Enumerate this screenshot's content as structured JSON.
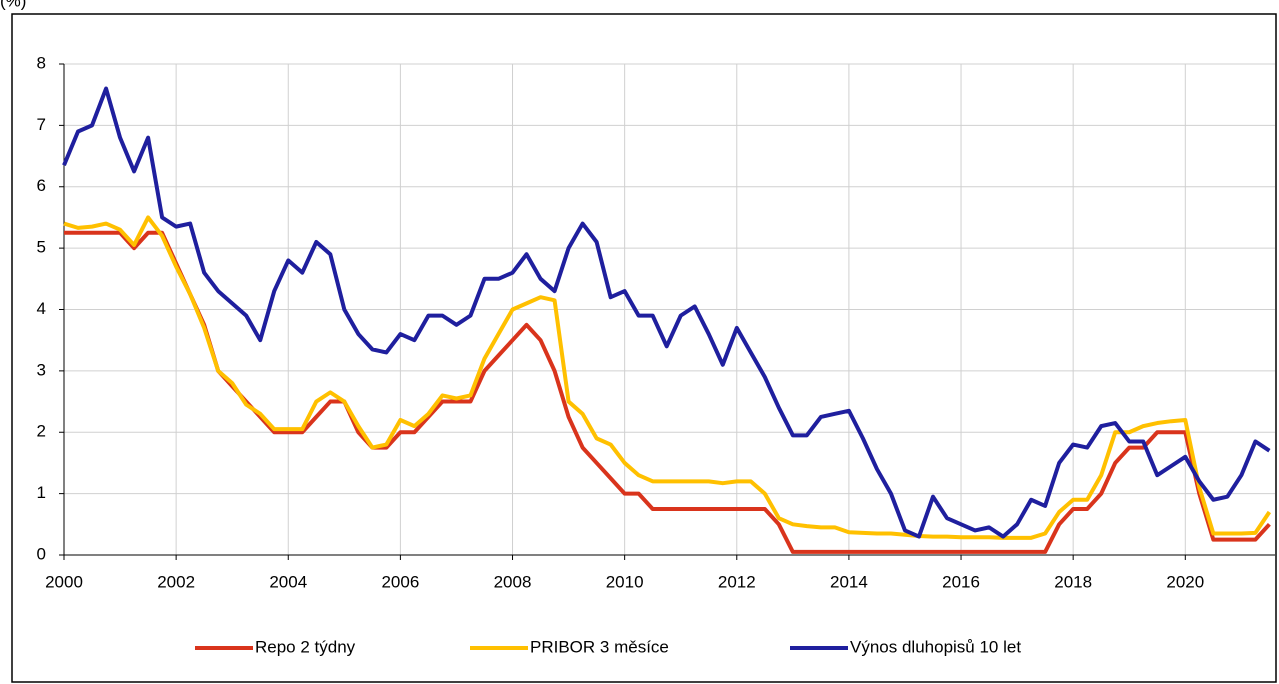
{
  "chart_data": {
    "type": "line",
    "y_label": "(%)",
    "x": [
      2000,
      2000.25,
      2000.5,
      2000.75,
      2001,
      2001.25,
      2001.5,
      2001.75,
      2002,
      2002.25,
      2002.5,
      2002.75,
      2003,
      2003.25,
      2003.5,
      2003.75,
      2004,
      2004.25,
      2004.5,
      2004.75,
      2005,
      2005.25,
      2005.5,
      2005.75,
      2006,
      2006.25,
      2006.5,
      2006.75,
      2007,
      2007.25,
      2007.5,
      2007.75,
      2008,
      2008.25,
      2008.5,
      2008.75,
      2009,
      2009.25,
      2009.5,
      2009.75,
      2010,
      2010.25,
      2010.5,
      2010.75,
      2011,
      2011.25,
      2011.5,
      2011.75,
      2012,
      2012.25,
      2012.5,
      2012.75,
      2013,
      2013.25,
      2013.5,
      2013.75,
      2014,
      2014.25,
      2014.5,
      2014.75,
      2015,
      2015.25,
      2015.5,
      2015.75,
      2016,
      2016.25,
      2016.5,
      2016.75,
      2017,
      2017.25,
      2017.5,
      2017.75,
      2018,
      2018.25,
      2018.5,
      2018.75,
      2019,
      2019.25,
      2019.5,
      2019.75,
      2020,
      2020.25,
      2020.5,
      2020.75,
      2021,
      2021.25,
      2021.5
    ],
    "series": [
      {
        "name": "Repo 2 týdny",
        "color": "#d9341c",
        "values": [
          5.25,
          5.25,
          5.25,
          5.25,
          5.25,
          5.0,
          5.25,
          5.25,
          4.75,
          4.25,
          3.75,
          3.0,
          2.75,
          2.5,
          2.25,
          2.0,
          2.0,
          2.0,
          2.25,
          2.5,
          2.5,
          2.0,
          1.75,
          1.75,
          2.0,
          2.0,
          2.25,
          2.5,
          2.5,
          2.5,
          3.0,
          3.25,
          3.5,
          3.75,
          3.5,
          3.0,
          2.25,
          1.75,
          1.5,
          1.25,
          1.0,
          1.0,
          0.75,
          0.75,
          0.75,
          0.75,
          0.75,
          0.75,
          0.75,
          0.75,
          0.75,
          0.5,
          0.05,
          0.05,
          0.05,
          0.05,
          0.05,
          0.05,
          0.05,
          0.05,
          0.05,
          0.05,
          0.05,
          0.05,
          0.05,
          0.05,
          0.05,
          0.05,
          0.05,
          0.05,
          0.05,
          0.5,
          0.75,
          0.75,
          1.0,
          1.5,
          1.75,
          1.75,
          2.0,
          2.0,
          2.0,
          1.0,
          0.25,
          0.25,
          0.25,
          0.25,
          0.5
        ]
      },
      {
        "name": "PRIBOR 3 měsíce",
        "color": "#ffc000",
        "values": [
          5.4,
          5.33,
          5.35,
          5.4,
          5.3,
          5.05,
          5.5,
          5.2,
          4.7,
          4.25,
          3.7,
          3.0,
          2.8,
          2.45,
          2.3,
          2.05,
          2.05,
          2.05,
          2.5,
          2.65,
          2.5,
          2.1,
          1.75,
          1.8,
          2.2,
          2.1,
          2.3,
          2.6,
          2.55,
          2.6,
          3.2,
          3.6,
          4.0,
          4.1,
          4.2,
          4.15,
          2.5,
          2.3,
          1.9,
          1.8,
          1.5,
          1.3,
          1.2,
          1.2,
          1.2,
          1.2,
          1.2,
          1.17,
          1.2,
          1.2,
          1.0,
          0.6,
          0.5,
          0.47,
          0.45,
          0.45,
          0.37,
          0.36,
          0.35,
          0.35,
          0.33,
          0.31,
          0.3,
          0.3,
          0.29,
          0.29,
          0.29,
          0.28,
          0.28,
          0.28,
          0.35,
          0.7,
          0.9,
          0.9,
          1.3,
          2.0,
          2.0,
          2.1,
          2.15,
          2.18,
          2.2,
          1.1,
          0.35,
          0.35,
          0.35,
          0.36,
          0.7
        ]
      },
      {
        "name": "Výnos dluhopisů 10 let",
        "color": "#1f1f9e",
        "values": [
          6.35,
          6.9,
          7.0,
          7.6,
          6.8,
          6.25,
          6.8,
          5.5,
          5.35,
          5.4,
          4.6,
          4.3,
          4.1,
          3.9,
          3.5,
          4.3,
          4.8,
          4.6,
          5.1,
          4.9,
          4.0,
          3.6,
          3.35,
          3.3,
          3.6,
          3.5,
          3.9,
          3.9,
          3.75,
          3.9,
          4.5,
          4.5,
          4.6,
          4.9,
          4.5,
          4.3,
          5.0,
          5.4,
          5.1,
          4.2,
          4.3,
          3.9,
          3.9,
          3.4,
          3.9,
          4.05,
          3.6,
          3.1,
          3.7,
          3.3,
          2.9,
          2.4,
          1.95,
          1.95,
          2.25,
          2.3,
          2.35,
          1.9,
          1.4,
          1.0,
          0.4,
          0.3,
          0.95,
          0.6,
          0.5,
          0.4,
          0.45,
          0.3,
          0.5,
          0.9,
          0.8,
          1.5,
          1.8,
          1.75,
          2.1,
          2.15,
          1.85,
          1.85,
          1.3,
          1.45,
          1.6,
          1.2,
          0.9,
          0.95,
          1.3,
          1.85,
          1.7
        ]
      }
    ],
    "xlim": [
      2000,
      2021.6
    ],
    "xticks": [
      2000,
      2002,
      2004,
      2006,
      2008,
      2010,
      2012,
      2014,
      2016,
      2018,
      2020
    ],
    "ylim": [
      0,
      8
    ],
    "yticks": [
      0,
      1,
      2,
      3,
      4,
      5,
      6,
      7,
      8
    ],
    "grid": true,
    "legend": "bottom"
  }
}
